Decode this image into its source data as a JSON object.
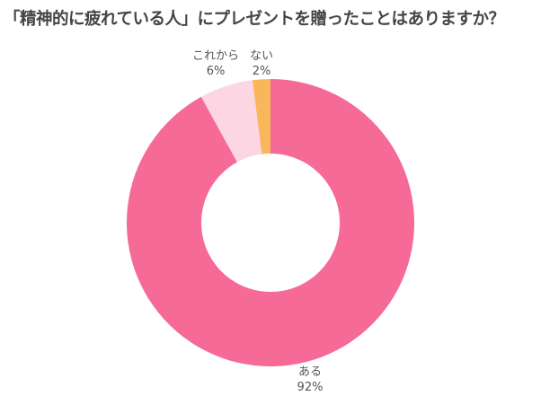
{
  "chart_data": {
    "type": "pie",
    "donut": true,
    "title": "「精神的に疲れている人」にプレゼントを贈ったことはありますか？",
    "categories": [
      "ある",
      "これから",
      "ない"
    ],
    "values": [
      92,
      6,
      2
    ],
    "labels": [
      "92%",
      "6%",
      "2%"
    ],
    "colors": [
      "#F56A96",
      "#FDD6E3",
      "#F8B75B"
    ],
    "direction": "clockwise from top",
    "legend": "none"
  }
}
